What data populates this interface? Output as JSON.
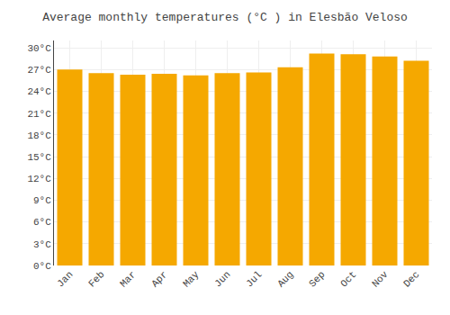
{
  "chart_data": {
    "type": "bar",
    "title": "Average monthly temperatures (°C ) in Elesbão Veloso",
    "categories": [
      "Jan",
      "Feb",
      "Mar",
      "Apr",
      "May",
      "Jun",
      "Jul",
      "Aug",
      "Sep",
      "Oct",
      "Nov",
      "Dec"
    ],
    "values": [
      27.0,
      26.5,
      26.3,
      26.4,
      26.2,
      26.5,
      26.6,
      27.3,
      29.2,
      29.1,
      28.8,
      28.2
    ],
    "color": "#F5A800",
    "ylim": [
      0,
      31
    ],
    "yticks": [
      {
        "value": 0,
        "label": "0°C"
      },
      {
        "value": 3,
        "label": "3°C"
      },
      {
        "value": 6,
        "label": "6°C"
      },
      {
        "value": 9,
        "label": "9°C"
      },
      {
        "value": 12,
        "label": "12°C"
      },
      {
        "value": 15,
        "label": "15°C"
      },
      {
        "value": 18,
        "label": "18°C"
      },
      {
        "value": 21,
        "label": "21°C"
      },
      {
        "value": 24,
        "label": "24°C"
      },
      {
        "value": 27,
        "label": "27°C"
      },
      {
        "value": 30,
        "label": "30°C"
      }
    ],
    "grid": true
  }
}
